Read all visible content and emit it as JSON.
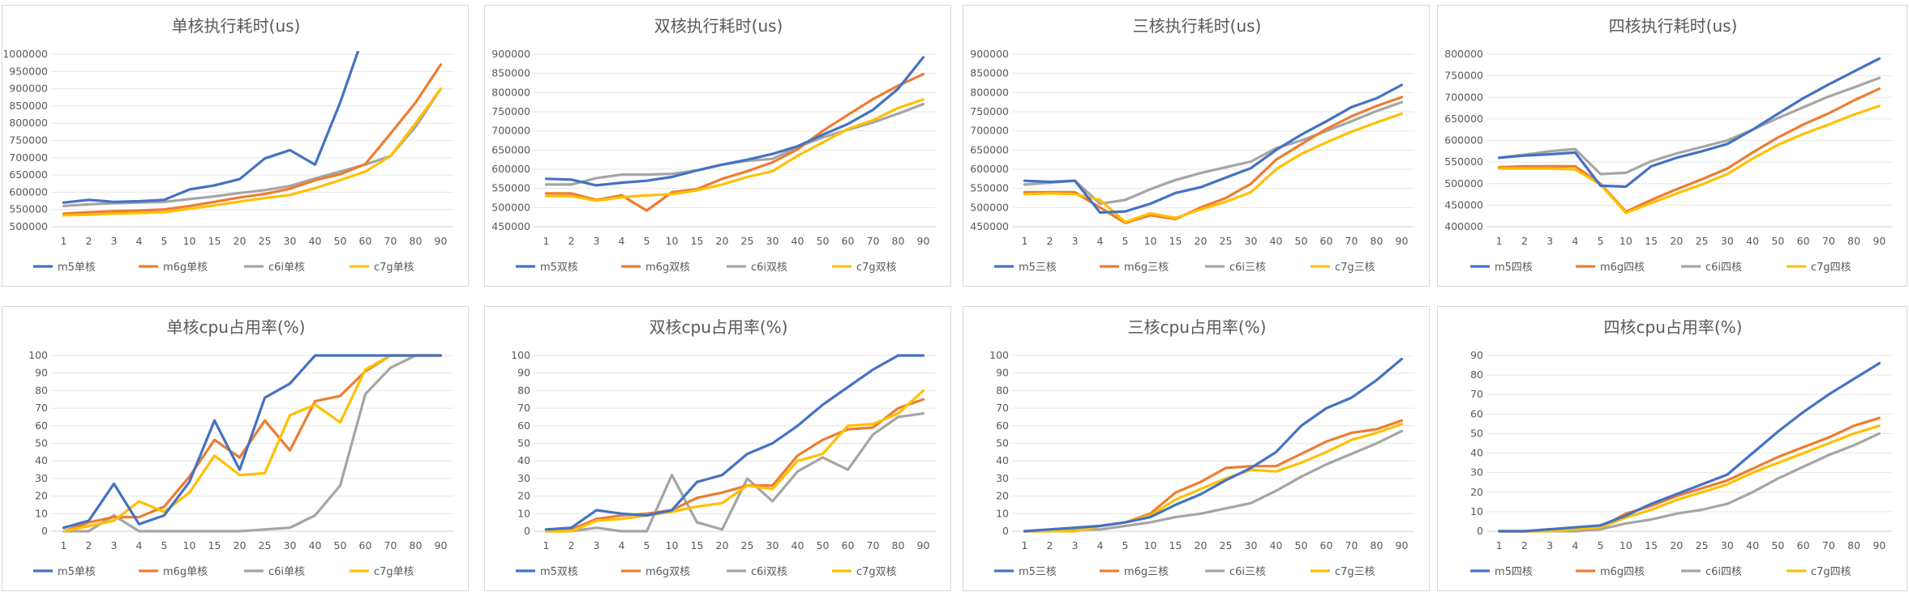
{
  "colors": {
    "m5": "#4472C4",
    "m6g": "#ED7D31",
    "c6i": "#A5A5A5",
    "c7g": "#FFC000"
  },
  "chart_data": [
    {
      "type": "line",
      "title": "单核执行耗时(us)",
      "categories": [
        "1",
        "2",
        "3",
        "4",
        "5",
        "10",
        "15",
        "20",
        "25",
        "30",
        "40",
        "50",
        "60",
        "70",
        "80",
        "90"
      ],
      "ylim": [
        500000,
        1000000
      ],
      "yticks": [
        "500000",
        "550000",
        "600000",
        "650000",
        "700000",
        "750000",
        "800000",
        "850000",
        "900000",
        "950000",
        "1000000"
      ],
      "series": [
        {
          "name": "m5单核",
          "values": [
            570000,
            578000,
            572000,
            574000,
            578000,
            608000,
            620000,
            638000,
            698000,
            722000,
            680000,
            860000,
            1070000,
            null,
            null,
            null
          ]
        },
        {
          "name": "m6g单核",
          "values": [
            538000,
            542000,
            545000,
            547000,
            550000,
            560000,
            572000,
            585000,
            595000,
            610000,
            635000,
            652000,
            682000,
            770000,
            860000,
            970000
          ]
        },
        {
          "name": "c6i单核",
          "values": [
            560000,
            565000,
            568000,
            570000,
            572000,
            580000,
            588000,
            598000,
            606000,
            618000,
            640000,
            660000,
            680000,
            705000,
            790000,
            900000
          ]
        },
        {
          "name": "c7g单核",
          "values": [
            533000,
            535000,
            538000,
            540000,
            542000,
            552000,
            562000,
            573000,
            583000,
            592000,
            612000,
            635000,
            660000,
            705000,
            800000,
            900000
          ]
        }
      ]
    },
    {
      "type": "line",
      "title": "双核执行耗时(us)",
      "categories": [
        "1",
        "2",
        "3",
        "4",
        "5",
        "10",
        "15",
        "20",
        "25",
        "30",
        "40",
        "50",
        "60",
        "70",
        "80",
        "90"
      ],
      "ylim": [
        450000,
        900000
      ],
      "yticks": [
        "450000",
        "500000",
        "550000",
        "600000",
        "650000",
        "700000",
        "750000",
        "800000",
        "850000",
        "900000"
      ],
      "series": [
        {
          "name": "m5双核",
          "values": [
            575000,
            573000,
            558000,
            565000,
            570000,
            580000,
            597000,
            612000,
            625000,
            640000,
            660000,
            690000,
            718000,
            755000,
            810000,
            892000
          ]
        },
        {
          "name": "m6g双核",
          "values": [
            537000,
            537000,
            520000,
            532000,
            492000,
            540000,
            548000,
            575000,
            595000,
            618000,
            652000,
            700000,
            742000,
            783000,
            818000,
            848000
          ]
        },
        {
          "name": "c6i双核",
          "values": [
            560000,
            560000,
            577000,
            586000,
            586000,
            588000,
            597000,
            612000,
            622000,
            627000,
            658000,
            683000,
            703000,
            722000,
            745000,
            770000
          ]
        },
        {
          "name": "c7g双核",
          "values": [
            530000,
            530000,
            518000,
            527000,
            532000,
            535000,
            545000,
            560000,
            580000,
            595000,
            635000,
            670000,
            705000,
            728000,
            760000,
            782000
          ]
        }
      ]
    },
    {
      "type": "line",
      "title": "三核执行耗时(us)",
      "categories": [
        "1",
        "2",
        "3",
        "4",
        "5",
        "10",
        "15",
        "20",
        "25",
        "30",
        "40",
        "50",
        "60",
        "70",
        "80",
        "90"
      ],
      "ylim": [
        450000,
        900000
      ],
      "yticks": [
        "450000",
        "500000",
        "550000",
        "600000",
        "650000",
        "700000",
        "750000",
        "800000",
        "850000",
        "900000"
      ],
      "series": [
        {
          "name": "m5三核",
          "values": [
            570000,
            567000,
            570000,
            487000,
            490000,
            510000,
            538000,
            553000,
            578000,
            603000,
            650000,
            690000,
            725000,
            762000,
            785000,
            820000
          ]
        },
        {
          "name": "m6g三核",
          "values": [
            540000,
            540000,
            540000,
            500000,
            460000,
            480000,
            470000,
            500000,
            525000,
            562000,
            625000,
            665000,
            705000,
            738000,
            765000,
            788000
          ]
        },
        {
          "name": "c6i三核",
          "values": [
            560000,
            565000,
            570000,
            510000,
            520000,
            548000,
            572000,
            590000,
            605000,
            620000,
            655000,
            675000,
            700000,
            725000,
            752000,
            775000
          ]
        },
        {
          "name": "c7g三核",
          "values": [
            535000,
            537000,
            535000,
            520000,
            462000,
            485000,
            473000,
            495000,
            515000,
            540000,
            600000,
            640000,
            670000,
            698000,
            722000,
            745000
          ]
        }
      ]
    },
    {
      "type": "line",
      "title": "四核执行耗时(us)",
      "categories": [
        "1",
        "2",
        "3",
        "4",
        "5",
        "10",
        "15",
        "20",
        "25",
        "30",
        "40",
        "50",
        "60",
        "70",
        "80",
        "90"
      ],
      "ylim": [
        400000,
        800000
      ],
      "yticks": [
        "400000",
        "450000",
        "500000",
        "550000",
        "600000",
        "650000",
        "700000",
        "750000",
        "800000"
      ],
      "series": [
        {
          "name": "m5四核",
          "values": [
            560000,
            565000,
            568000,
            572000,
            495000,
            493000,
            540000,
            560000,
            575000,
            592000,
            625000,
            662000,
            698000,
            730000,
            760000,
            790000
          ]
        },
        {
          "name": "m6g四核",
          "values": [
            538000,
            540000,
            540000,
            540000,
            500000,
            435000,
            462000,
            487000,
            510000,
            535000,
            572000,
            607000,
            637000,
            663000,
            693000,
            720000
          ]
        },
        {
          "name": "c6i四核",
          "values": [
            560000,
            567000,
            575000,
            580000,
            522000,
            525000,
            552000,
            570000,
            585000,
            600000,
            625000,
            652000,
            677000,
            702000,
            723000,
            745000
          ]
        },
        {
          "name": "c7g四核",
          "values": [
            535000,
            535000,
            535000,
            533000,
            498000,
            432000,
            455000,
            477000,
            498000,
            522000,
            558000,
            590000,
            615000,
            637000,
            660000,
            680000
          ]
        }
      ]
    },
    {
      "type": "line",
      "title": "单核cpu占用率(%)",
      "categories": [
        "1",
        "2",
        "3",
        "4",
        "5",
        "10",
        "15",
        "20",
        "25",
        "30",
        "40",
        "50",
        "60",
        "70",
        "80",
        "90"
      ],
      "ylim": [
        0,
        100
      ],
      "yticks": [
        "0",
        "10",
        "20",
        "30",
        "40",
        "50",
        "60",
        "70",
        "80",
        "90",
        "100"
      ],
      "series": [
        {
          "name": "m5单核",
          "values": [
            2,
            6,
            27,
            4,
            9,
            28,
            63,
            35,
            76,
            84,
            100,
            100,
            100,
            100,
            100,
            100
          ]
        },
        {
          "name": "m6g单核",
          "values": [
            0,
            5,
            8,
            8,
            14,
            31,
            52,
            42,
            63,
            46,
            74,
            77,
            91,
            100,
            100,
            100
          ]
        },
        {
          "name": "c6i单核",
          "values": [
            0,
            0,
            9,
            0,
            0,
            0,
            0,
            0,
            1,
            2,
            9,
            26,
            78,
            93,
            100,
            100
          ]
        },
        {
          "name": "c7g单核",
          "values": [
            0,
            3,
            6,
            17,
            11,
            22,
            43,
            32,
            33,
            66,
            72,
            62,
            92,
            100,
            100,
            100
          ]
        }
      ]
    },
    {
      "type": "line",
      "title": "双核cpu占用率(%)",
      "categories": [
        "1",
        "2",
        "3",
        "4",
        "5",
        "10",
        "15",
        "20",
        "25",
        "30",
        "40",
        "50",
        "60",
        "70",
        "80",
        "90"
      ],
      "ylim": [
        0,
        100
      ],
      "yticks": [
        "0",
        "10",
        "20",
        "30",
        "40",
        "50",
        "60",
        "70",
        "80",
        "90",
        "100"
      ],
      "series": [
        {
          "name": "m5双核",
          "values": [
            1,
            2,
            12,
            10,
            9,
            12,
            28,
            32,
            44,
            50,
            60,
            72,
            82,
            92,
            100,
            100
          ]
        },
        {
          "name": "m6g双核",
          "values": [
            0,
            1,
            7,
            9,
            10,
            12,
            19,
            22,
            26,
            26,
            43,
            52,
            58,
            59,
            70,
            75
          ]
        },
        {
          "name": "c6i双核",
          "values": [
            0,
            0,
            2,
            0,
            0,
            32,
            5,
            1,
            30,
            17,
            34,
            42,
            35,
            55,
            65,
            67
          ]
        },
        {
          "name": "c7g双核",
          "values": [
            0,
            0,
            6,
            7,
            9,
            11,
            14,
            16,
            26,
            24,
            40,
            44,
            60,
            61,
            67,
            80
          ]
        }
      ]
    },
    {
      "type": "line",
      "title": "三核cpu占用率(%)",
      "categories": [
        "1",
        "2",
        "3",
        "4",
        "5",
        "10",
        "15",
        "20",
        "25",
        "30",
        "40",
        "50",
        "60",
        "70",
        "80",
        "90"
      ],
      "ylim": [
        0,
        100
      ],
      "yticks": [
        "0",
        "10",
        "20",
        "30",
        "40",
        "50",
        "60",
        "70",
        "80",
        "90",
        "100"
      ],
      "series": [
        {
          "name": "m5三核",
          "values": [
            0,
            1,
            2,
            3,
            5,
            8,
            15,
            21,
            29,
            36,
            45,
            60,
            70,
            76,
            86,
            98
          ]
        },
        {
          "name": "m6g三核",
          "values": [
            0,
            1,
            2,
            3,
            5,
            10,
            22,
            28,
            36,
            37,
            37,
            44,
            51,
            56,
            58,
            63
          ]
        },
        {
          "name": "c6i三核",
          "values": [
            0,
            0,
            1,
            1,
            3,
            5,
            8,
            10,
            13,
            16,
            23,
            31,
            38,
            44,
            50,
            57
          ]
        },
        {
          "name": "c7g三核",
          "values": [
            0,
            0,
            0,
            3,
            5,
            9,
            18,
            24,
            30,
            35,
            34,
            39,
            45,
            52,
            56,
            61
          ]
        }
      ]
    },
    {
      "type": "line",
      "title": "四核cpu占用率(%)",
      "categories": [
        "1",
        "2",
        "3",
        "4",
        "5",
        "10",
        "15",
        "20",
        "25",
        "30",
        "40",
        "50",
        "60",
        "70",
        "80",
        "90"
      ],
      "ylim": [
        0,
        90
      ],
      "yticks": [
        "0",
        "10",
        "20",
        "30",
        "40",
        "50",
        "60",
        "70",
        "80",
        "90"
      ],
      "series": [
        {
          "name": "m5四核",
          "values": [
            0,
            0,
            1,
            2,
            3,
            8,
            14,
            19,
            24,
            29,
            40,
            51,
            61,
            70,
            78,
            86
          ]
        },
        {
          "name": "m6g四核",
          "values": [
            0,
            0,
            1,
            1,
            2,
            9,
            13,
            18,
            22,
            26,
            32,
            38,
            43,
            48,
            54,
            58
          ]
        },
        {
          "name": "c6i四核",
          "values": [
            0,
            0,
            0,
            0,
            1,
            4,
            6,
            9,
            11,
            14,
            20,
            27,
            33,
            39,
            44,
            50
          ]
        },
        {
          "name": "c7g四核",
          "values": [
            0,
            0,
            0,
            1,
            2,
            7,
            11,
            16,
            20,
            24,
            30,
            35,
            40,
            45,
            50,
            54
          ]
        }
      ]
    }
  ]
}
